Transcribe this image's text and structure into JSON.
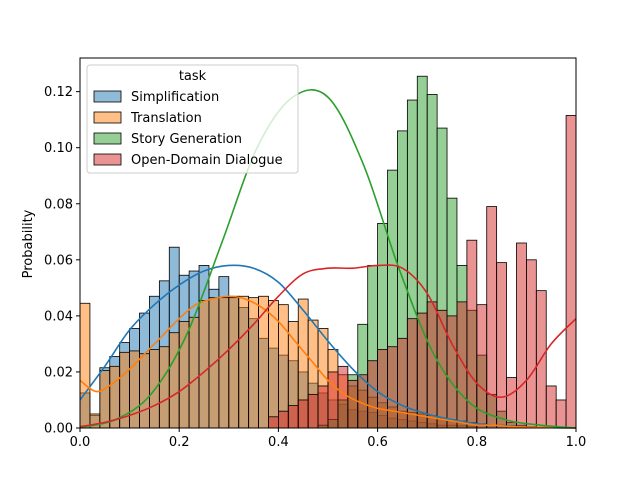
{
  "chart_data": {
    "type": "histogram",
    "ylabel": "Probability",
    "xlabel": "",
    "xlim": [
      0,
      1
    ],
    "ylim": [
      0,
      0.132
    ],
    "xticks": [
      "0.0",
      "0.2",
      "0.4",
      "0.6",
      "0.8",
      "1.0"
    ],
    "yticks": [
      "0.00",
      "0.02",
      "0.04",
      "0.06",
      "0.08",
      "0.10",
      "0.12"
    ],
    "grid": false,
    "legend": {
      "title": "task",
      "placement": "top-left"
    },
    "bin_width": 0.02,
    "series": [
      {
        "name": "Simplification",
        "color": "#1f77b4",
        "values": [
          0.0125,
          0.0045,
          0.0215,
          0.0255,
          0.0305,
          0.0355,
          0.041,
          0.047,
          0.0525,
          0.0645,
          0.0545,
          0.056,
          0.058,
          0.0495,
          0.054,
          0.047,
          0.043,
          0.039,
          0.032,
          0.0285,
          0.026,
          0.024,
          0.02,
          0.016,
          0.0125,
          0.01,
          0.0085,
          0.0065,
          0.006,
          0.0055,
          0.0045,
          0.0035,
          0.003,
          0.0025,
          0.002,
          0.0015,
          0.001,
          0.001,
          0.0008,
          0.0005,
          0,
          0,
          0,
          0,
          0,
          0,
          0,
          0,
          0,
          0
        ],
        "kde": [
          0.01,
          0.022,
          0.035,
          0.044,
          0.051,
          0.056,
          0.058,
          0.057,
          0.052,
          0.042,
          0.031,
          0.021,
          0.013,
          0.008,
          0.005,
          0.003,
          0.0015,
          0.0008,
          0.0003,
          0.0001,
          0
        ]
      },
      {
        "name": "Translation",
        "color": "#ff7f0e",
        "values": [
          0.0445,
          0.005,
          0.0205,
          0.022,
          0.027,
          0.0275,
          0.0265,
          0.028,
          0.029,
          0.034,
          0.038,
          0.0395,
          0.0455,
          0.0465,
          0.0465,
          0.0465,
          0.047,
          0.0465,
          0.047,
          0.0455,
          0.044,
          0.038,
          0.046,
          0.0385,
          0.0355,
          0.028,
          0.019,
          0.015,
          0.0135,
          0.011,
          0.009,
          0.0075,
          0.006,
          0.0055,
          0.005,
          0.0045,
          0.0035,
          0.003,
          0.0025,
          0.002,
          0.0015,
          0.001,
          0.001,
          0.0008,
          0.0005,
          0.0005,
          0.0003,
          0.0002,
          0.0001,
          0.0001
        ],
        "kde": [
          0.017,
          0.013,
          0.016,
          0.021,
          0.027,
          0.033,
          0.039,
          0.044,
          0.046,
          0.047,
          0.046,
          0.043,
          0.038,
          0.031,
          0.024,
          0.017,
          0.012,
          0.009,
          0.007,
          0.006,
          0.005,
          0.004,
          0.003,
          0.002,
          0.001,
          0.001,
          0.0005,
          0.0003,
          0.0002,
          0.0001,
          0
        ]
      },
      {
        "name": "Story Generation",
        "color": "#2ca02c",
        "values": [
          0,
          0,
          0,
          0,
          0,
          0,
          0,
          0,
          0,
          0,
          0,
          0,
          0,
          0,
          0,
          0,
          0,
          0,
          0,
          0,
          0,
          0,
          0,
          0,
          0.001,
          0.003,
          0.01,
          0.019,
          0.037,
          0.058,
          0.073,
          0.092,
          0.106,
          0.117,
          0.1255,
          0.119,
          0.107,
          0.082,
          0.058,
          0.042,
          0.026,
          0.012,
          0.006,
          0.002,
          0.001,
          0,
          0,
          0,
          0,
          0
        ],
        "kde": [
          0.0002,
          0.003,
          0.012,
          0.033,
          0.066,
          0.1,
          0.118,
          0.118,
          0.094,
          0.057,
          0.026,
          0.009,
          0.003,
          0.001,
          0
        ]
      },
      {
        "name": "Open-Domain Dialogue",
        "color": "#d62728",
        "values": [
          0,
          0,
          0,
          0,
          0,
          0,
          0,
          0,
          0,
          0,
          0,
          0,
          0,
          0,
          0,
          0,
          0,
          0,
          0,
          0.004,
          0.006,
          0.008,
          0.01,
          0.012,
          0.015,
          0.02,
          0.022,
          0.017,
          0.019,
          0.024,
          0.028,
          0.029,
          0.032,
          0.039,
          0.041,
          0.045,
          0.042,
          0.04,
          0.045,
          0.067,
          0.044,
          0.079,
          0.059,
          0.018,
          0.066,
          0.06,
          0.049,
          0.015,
          0.01,
          0.1115
        ],
        "kde": [
          0.0005,
          0.002,
          0.0045,
          0.008,
          0.013,
          0.02,
          0.028,
          0.037,
          0.047,
          0.055,
          0.057,
          0.057,
          0.058,
          0.057,
          0.048,
          0.03,
          0.016,
          0.011,
          0.017,
          0.03,
          0.039
        ]
      }
    ]
  }
}
